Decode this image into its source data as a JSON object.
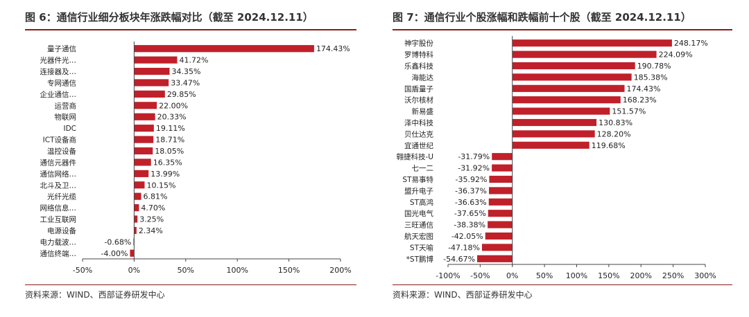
{
  "colors": {
    "bar": "#c0202a",
    "axis": "#444444",
    "rule": "#8b1a1a",
    "text": "#222222"
  },
  "left": {
    "title": "图 6：通信行业细分板块年涨跌幅对比（截至 2024.12.11）",
    "source": "资料来源：WIND、西部证券研发中心"
  },
  "right": {
    "title": "图 7：通信行业个股涨幅和跌幅前十个股（截至 2024.12.11）",
    "source": "资料来源：WIND、西部证券研发中心"
  },
  "chart_data": [
    {
      "type": "bar",
      "orientation": "horizontal",
      "title": "图 6：通信行业细分板块年涨跌幅对比（截至 2024.12.11）",
      "categories": [
        "量子通信",
        "光器件光…",
        "连接器及…",
        "专网通信",
        "企业通信…",
        "运营商",
        "物联网",
        "IDC",
        "ICT设备商",
        "温控设备",
        "通信元器件",
        "通信网络…",
        "北斗及卫…",
        "光纤光缆",
        "网络信息…",
        "工业互联网",
        "电源设备",
        "电力载波…",
        "通信终端…"
      ],
      "values": [
        174.43,
        41.72,
        34.35,
        33.47,
        29.85,
        22.0,
        20.33,
        19.11,
        18.71,
        18.05,
        16.35,
        13.99,
        10.15,
        6.81,
        4.7,
        3.25,
        2.34,
        -0.68,
        -4.0
      ],
      "labels": [
        "174.43%",
        "41.72%",
        "34.35%",
        "33.47%",
        "29.85%",
        "22.00%",
        "20.33%",
        "19.11%",
        "18.71%",
        "18.05%",
        "16.35%",
        "13.99%",
        "10.15%",
        "6.81%",
        "4.70%",
        "3.25%",
        "2.34%",
        "-0.68%",
        "-4.00%"
      ],
      "xlim": [
        -50,
        200
      ],
      "xticks": [
        -50,
        0,
        50,
        100,
        150,
        200
      ],
      "xtick_labels": [
        "-50%",
        "0%",
        "50%",
        "100%",
        "150%",
        "200%"
      ],
      "grid": false,
      "legend": "none"
    },
    {
      "type": "bar",
      "orientation": "horizontal",
      "title": "图 7：通信行业个股涨幅和跌幅前十个股（截至 2024.12.11）",
      "categories": [
        "神宇股份",
        "罗博特科",
        "乐鑫科技",
        "海能达",
        "国盾量子",
        "沃尔核材",
        "新易盛",
        "泽中科技",
        "贝仕达克",
        "宜通世纪",
        "翱捷科技-U",
        "七一二",
        "ST易事特",
        "盟升电子",
        "ST高鸿",
        "国光电气",
        "三旺通信",
        "航天宏图",
        "ST天喻",
        "*ST鹏博"
      ],
      "values": [
        248.17,
        224.09,
        190.78,
        185.38,
        174.43,
        168.23,
        151.57,
        130.83,
        128.2,
        119.68,
        -31.79,
        -31.92,
        -35.92,
        -36.37,
        -36.63,
        -37.65,
        -38.38,
        -42.05,
        -47.18,
        -54.67
      ],
      "labels": [
        "248.17%",
        "224.09%",
        "190.78%",
        "185.38%",
        "174.43%",
        "168.23%",
        "151.57%",
        "130.83%",
        "128.20%",
        "119.68%",
        "-31.79%",
        "-31.92%",
        "-35.92%",
        "-36.37%",
        "-36.63%",
        "-37.65%",
        "-38.38%",
        "-42.05%",
        "-47.18%",
        "-54.67%"
      ],
      "xlim": [
        -100,
        300
      ],
      "xticks": [
        -100,
        -50,
        0,
        50,
        100,
        150,
        200,
        250,
        300
      ],
      "xtick_labels": [
        "-100%",
        "-50%",
        "0%",
        "50%",
        "100%",
        "150%",
        "200%",
        "250%",
        "300%"
      ],
      "grid": false,
      "legend": "none"
    }
  ]
}
